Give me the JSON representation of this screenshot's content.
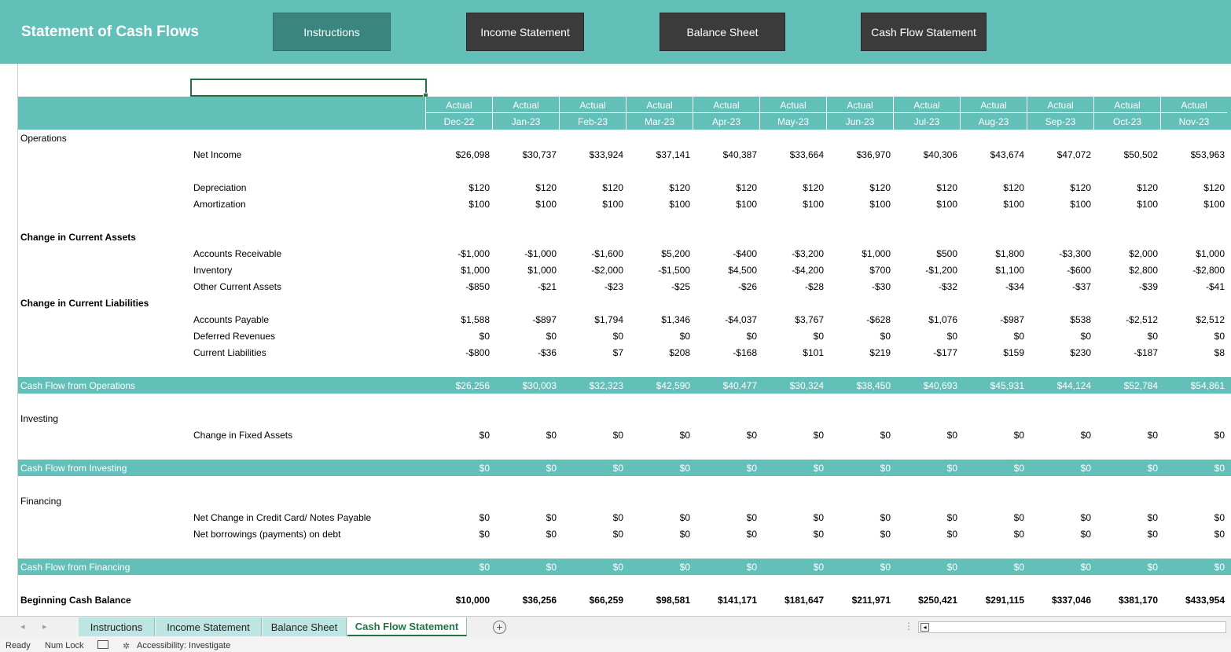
{
  "banner": {
    "title": "Statement of Cash Flows",
    "buttons": [
      "Instructions",
      "Income Statement",
      "Balance Sheet",
      "Cash Flow Statement"
    ]
  },
  "header": {
    "row1": [
      "Actual",
      "Actual",
      "Actual",
      "Actual",
      "Actual",
      "Actual",
      "Actual",
      "Actual",
      "Actual",
      "Actual",
      "Actual",
      "Actual"
    ],
    "months": [
      "Dec-22",
      "Jan-23",
      "Feb-23",
      "Mar-23",
      "Apr-23",
      "May-23",
      "Jun-23",
      "Jul-23",
      "Aug-23",
      "Sep-23",
      "Oct-23",
      "Nov-23"
    ]
  },
  "rows": [
    {
      "label": "Operations",
      "bold": false
    },
    {
      "sub": "Net Income",
      "values": [
        "$26,098",
        "$30,737",
        "$33,924",
        "$37,141",
        "$40,387",
        "$33,664",
        "$36,970",
        "$40,306",
        "$43,674",
        "$47,072",
        "$50,502",
        "$53,963"
      ]
    },
    {
      "spacer": true
    },
    {
      "sub": "Depreciation",
      "values": [
        "$120",
        "$120",
        "$120",
        "$120",
        "$120",
        "$120",
        "$120",
        "$120",
        "$120",
        "$120",
        "$120",
        "$120"
      ]
    },
    {
      "sub": "Amortization",
      "values": [
        "$100",
        "$100",
        "$100",
        "$100",
        "$100",
        "$100",
        "$100",
        "$100",
        "$100",
        "$100",
        "$100",
        "$100"
      ]
    },
    {
      "spacer": true
    },
    {
      "label": "Change in Current Assets",
      "bold": true
    },
    {
      "sub": "Accounts Receivable",
      "values": [
        "-$1,000",
        "-$1,000",
        "-$1,600",
        "$5,200",
        "-$400",
        "-$3,200",
        "$1,000",
        "$500",
        "$1,800",
        "-$3,300",
        "$2,000",
        "$1,000"
      ]
    },
    {
      "sub": "Inventory",
      "values": [
        "$1,000",
        "$1,000",
        "-$2,000",
        "-$1,500",
        "$4,500",
        "-$4,200",
        "$700",
        "-$1,200",
        "$1,100",
        "-$600",
        "$2,800",
        "-$2,800"
      ]
    },
    {
      "sub": "Other Current Assets",
      "values": [
        "-$850",
        "-$21",
        "-$23",
        "-$25",
        "-$26",
        "-$28",
        "-$30",
        "-$32",
        "-$34",
        "-$37",
        "-$39",
        "-$41"
      ]
    },
    {
      "label": "Change in Current Liabilities",
      "bold": true
    },
    {
      "sub": "Accounts Payable",
      "values": [
        "$1,588",
        "-$897",
        "$1,794",
        "$1,346",
        "-$4,037",
        "$3,767",
        "-$628",
        "$1,076",
        "-$987",
        "$538",
        "-$2,512",
        "$2,512"
      ]
    },
    {
      "sub": "Deferred Revenues",
      "values": [
        "$0",
        "$0",
        "$0",
        "$0",
        "$0",
        "$0",
        "$0",
        "$0",
        "$0",
        "$0",
        "$0",
        "$0"
      ]
    },
    {
      "sub": "Current Liabilities",
      "values": [
        "-$800",
        "-$36",
        "$7",
        "$208",
        "-$168",
        "$101",
        "$219",
        "-$177",
        "$159",
        "$230",
        "-$187",
        "$8"
      ]
    },
    {
      "spacer": true
    },
    {
      "label": "Cash Flow from Operations",
      "band": true,
      "values": [
        "$26,256",
        "$30,003",
        "$32,323",
        "$42,590",
        "$40,477",
        "$30,324",
        "$38,450",
        "$40,693",
        "$45,931",
        "$44,124",
        "$52,784",
        "$54,861"
      ]
    },
    {
      "spacer": true
    },
    {
      "label": "Investing",
      "bold": false
    },
    {
      "sub": "Change in Fixed Assets",
      "values": [
        "$0",
        "$0",
        "$0",
        "$0",
        "$0",
        "$0",
        "$0",
        "$0",
        "$0",
        "$0",
        "$0",
        "$0"
      ]
    },
    {
      "spacer": true
    },
    {
      "label": "Cash Flow from Investing",
      "band": true,
      "values": [
        "$0",
        "$0",
        "$0",
        "$0",
        "$0",
        "$0",
        "$0",
        "$0",
        "$0",
        "$0",
        "$0",
        "$0"
      ]
    },
    {
      "spacer": true
    },
    {
      "label": "Financing",
      "bold": false
    },
    {
      "sub": "Net Change in Credit Card/ Notes Payable",
      "values": [
        "$0",
        "$0",
        "$0",
        "$0",
        "$0",
        "$0",
        "$0",
        "$0",
        "$0",
        "$0",
        "$0",
        "$0"
      ]
    },
    {
      "sub": "Net borrowings (payments) on debt",
      "values": [
        "$0",
        "$0",
        "$0",
        "$0",
        "$0",
        "$0",
        "$0",
        "$0",
        "$0",
        "$0",
        "$0",
        "$0"
      ]
    },
    {
      "spacer": true
    },
    {
      "label": "Cash Flow from Financing",
      "band": true,
      "values": [
        "$0",
        "$0",
        "$0",
        "$0",
        "$0",
        "$0",
        "$0",
        "$0",
        "$0",
        "$0",
        "$0",
        "$0"
      ]
    },
    {
      "spacer": true
    },
    {
      "label": "Beginning Cash Balance",
      "bold": true,
      "boldvals": true,
      "values": [
        "$10,000",
        "$36,256",
        "$66,259",
        "$98,581",
        "$141,171",
        "$181,647",
        "$211,971",
        "$250,421",
        "$291,115",
        "$337,046",
        "$381,170",
        "$433,954"
      ]
    }
  ],
  "tabs": {
    "nav_left": "◂",
    "nav_right": "▸",
    "items": [
      "Instructions",
      "Income Statement",
      "Balance Sheet",
      "Cash Flow Statement"
    ],
    "active": "Cash Flow Statement",
    "add": "+",
    "dots": "⋮",
    "scroll_left": "◂"
  },
  "status": {
    "ready": "Ready",
    "numlock": "Num Lock",
    "accessibility": "Accessibility: Investigate"
  },
  "colors": {
    "accent": "#62c0b8",
    "teal_button": "#3a857f",
    "dark_button": "#3b3b3b",
    "excel_green": "#217346"
  }
}
